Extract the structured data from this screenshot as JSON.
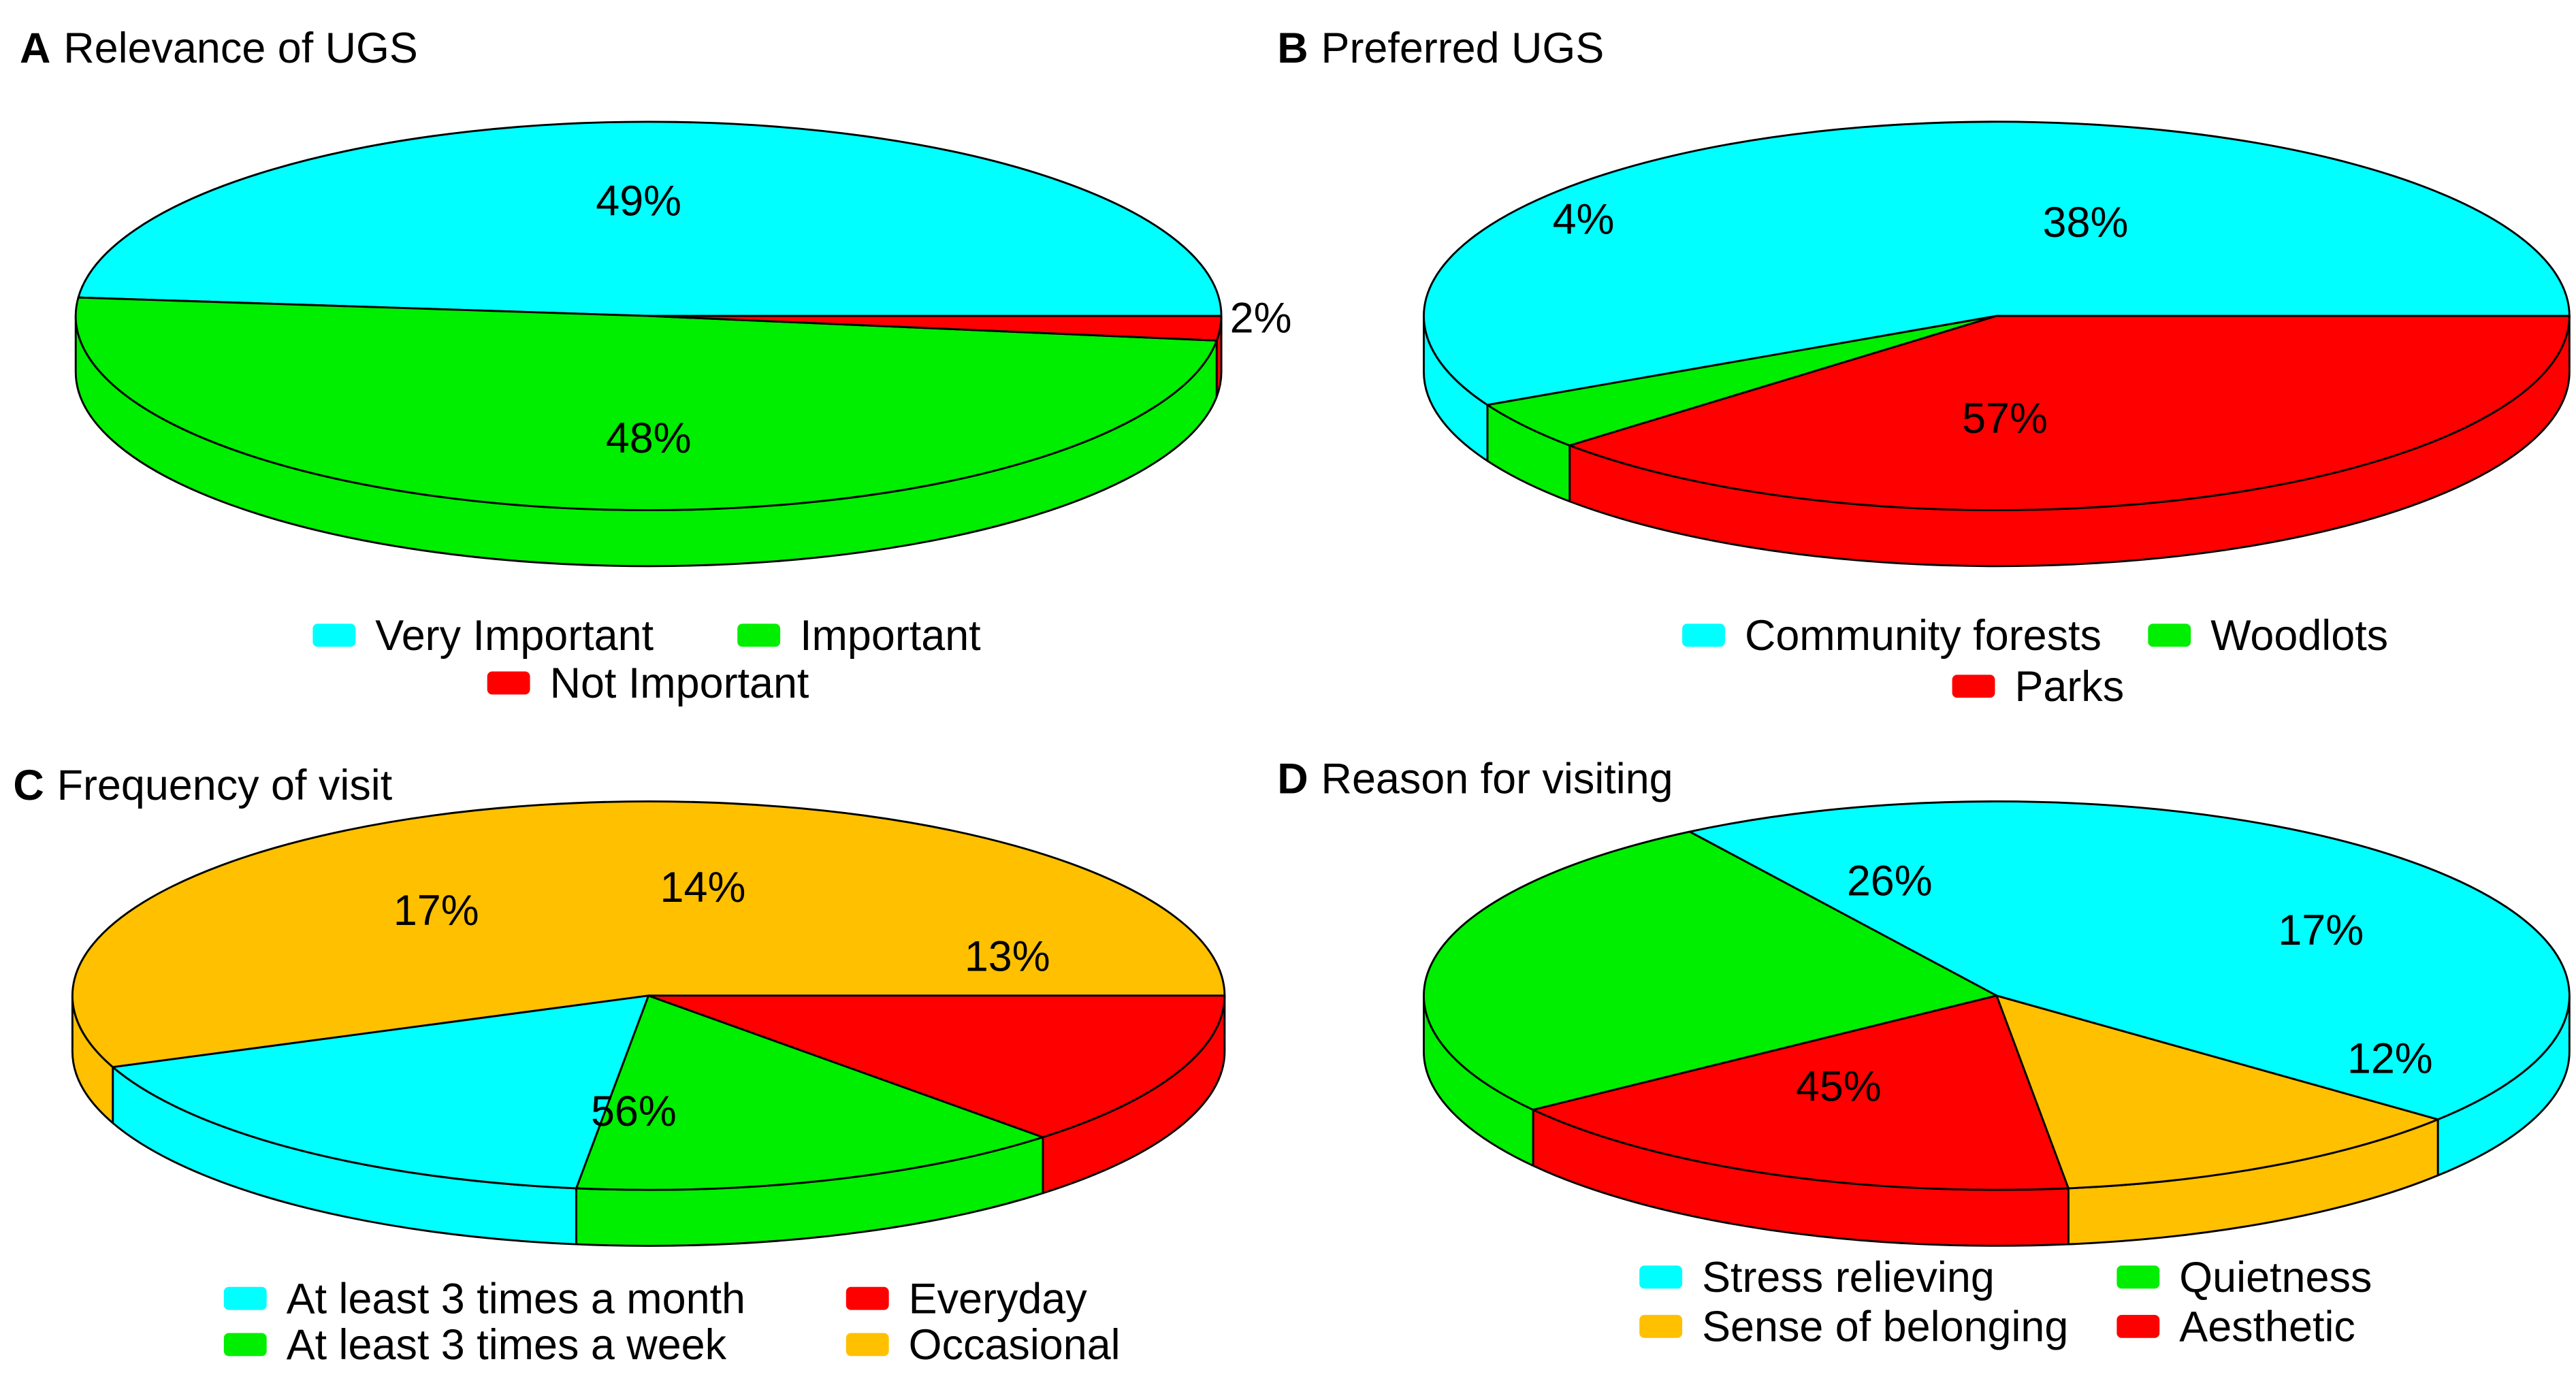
{
  "chart_data": [
    {
      "type": "pie",
      "panel_letter": "A",
      "title": "Relevance of UGS",
      "categories": [
        "Very Important",
        "Important",
        "Not Important"
      ],
      "values": [
        48,
        49,
        2
      ],
      "labels": [
        "48%",
        "49%",
        "2%"
      ],
      "colors": [
        "#00FFFF",
        "#00EE00",
        "#FF0000"
      ],
      "legend_rows": [
        [
          "Very Important",
          "Important"
        ],
        [
          "Not Important"
        ]
      ]
    },
    {
      "type": "pie",
      "panel_letter": "B",
      "title": "Preferred UGS",
      "categories": [
        "Community forests",
        "Woodlots",
        "Parks"
      ],
      "values": [
        57,
        4,
        38
      ],
      "labels": [
        "57%",
        "4%",
        "38%"
      ],
      "colors": [
        "#00FFFF",
        "#00EE00",
        "#FF0000"
      ],
      "legend_rows": [
        [
          "Community forests",
          "Woodlots"
        ],
        [
          "Parks"
        ]
      ]
    },
    {
      "type": "pie",
      "panel_letter": "C",
      "title": "Frequency of visit",
      "categories": [
        "Occasional",
        "At least 3 times a month",
        "At least 3 times a week",
        "Everyday"
      ],
      "values": [
        56,
        17,
        14,
        13
      ],
      "labels": [
        "56%",
        "17%",
        "14%",
        "13%"
      ],
      "colors": [
        "#FFC000",
        "#00FFFF",
        "#00EE00",
        "#FF0000"
      ],
      "legend_rows": [
        [
          "At least 3 times a month",
          "Everyday"
        ],
        [
          "At least 3 times a week",
          "Occasional"
        ]
      ]
    },
    {
      "type": "pie",
      "panel_letter": "D",
      "title": "Reason for visiting",
      "categories": [
        "Sense of belonging",
        "Stress relieving",
        "Quietness",
        "Aesthetic"
      ],
      "values": [
        12,
        45,
        26,
        17
      ],
      "labels": [
        "12%",
        "45%",
        "26%",
        "17%"
      ],
      "colors": [
        "#FFC000",
        "#00FFFF",
        "#00EE00",
        "#FF0000"
      ],
      "legend_rows": [
        [
          "Stress relieving",
          "Quietness"
        ],
        [
          "Sense of belonging",
          "Aesthetic"
        ]
      ]
    }
  ]
}
